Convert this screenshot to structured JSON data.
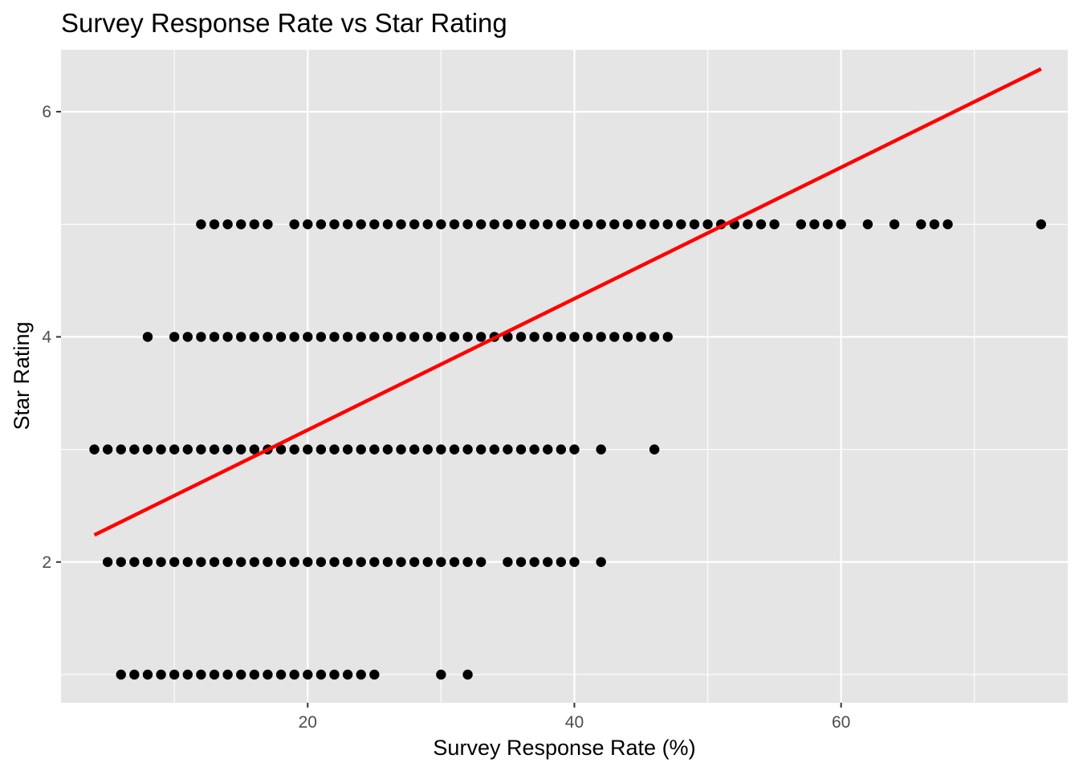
{
  "chart_data": {
    "type": "scatter",
    "title": "Survey Response Rate vs Star Rating",
    "xlabel": "Survey Response Rate (%)",
    "ylabel": "Star Rating",
    "xlim": [
      1.5,
      77
    ],
    "ylim": [
      0.75,
      6.55
    ],
    "x_ticks": [
      20,
      40,
      60
    ],
    "y_ticks": [
      2,
      4,
      6
    ],
    "x_minor_ticks": [
      10,
      30,
      50,
      70
    ],
    "y_minor_ticks": [
      1,
      3,
      5
    ],
    "grid": true,
    "panel_color": "#e5e5e5",
    "grid_color": "#ffffff",
    "point_color": "#000000",
    "trend_color": "#ff0000",
    "series": [
      {
        "y": 5,
        "x": [
          12,
          13,
          14,
          15,
          16,
          17,
          19,
          20,
          21,
          22,
          23,
          24,
          25,
          26,
          27,
          28,
          29,
          30,
          31,
          32,
          33,
          34,
          35,
          36,
          37,
          38,
          39,
          40,
          41,
          42,
          43,
          44,
          45,
          46,
          47,
          48,
          49,
          50,
          51,
          52,
          53,
          54,
          55,
          57,
          58,
          59,
          60,
          62,
          64,
          66,
          67,
          68,
          75
        ]
      },
      {
        "y": 4,
        "x": [
          8,
          10,
          11,
          12,
          13,
          14,
          15,
          16,
          17,
          18,
          19,
          20,
          21,
          22,
          23,
          24,
          25,
          26,
          27,
          28,
          29,
          30,
          31,
          32,
          33,
          34,
          35,
          36,
          37,
          38,
          39,
          40,
          41,
          42,
          43,
          44,
          45,
          46,
          47
        ]
      },
      {
        "y": 3,
        "x": [
          4,
          5,
          6,
          7,
          8,
          9,
          10,
          11,
          12,
          13,
          14,
          15,
          16,
          17,
          18,
          19,
          20,
          21,
          22,
          23,
          24,
          25,
          26,
          27,
          28,
          29,
          30,
          31,
          32,
          33,
          34,
          35,
          36,
          37,
          38,
          39,
          40,
          42,
          46
        ]
      },
      {
        "y": 2,
        "x": [
          5,
          6,
          7,
          8,
          9,
          10,
          11,
          12,
          13,
          14,
          15,
          16,
          17,
          18,
          19,
          20,
          21,
          22,
          23,
          24,
          25,
          26,
          27,
          28,
          29,
          30,
          31,
          32,
          33,
          35,
          36,
          37,
          38,
          39,
          40,
          42
        ]
      },
      {
        "y": 1,
        "x": [
          6,
          7,
          8,
          9,
          10,
          11,
          12,
          13,
          14,
          15,
          16,
          17,
          18,
          19,
          20,
          21,
          22,
          23,
          24,
          25,
          30,
          32
        ]
      }
    ],
    "trend_line": {
      "x": [
        4,
        75
      ],
      "y": [
        2.24,
        6.38
      ]
    }
  }
}
